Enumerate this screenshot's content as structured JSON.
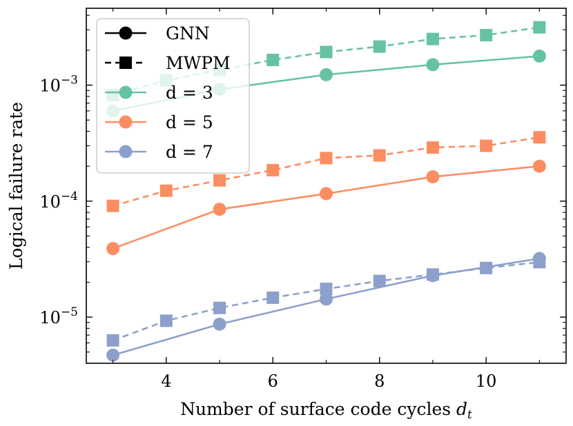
{
  "chart_data": {
    "type": "line",
    "xlabel": "Number of surface code cycles",
    "xlabel_sym": "d",
    "xlabel_sub": "t",
    "ylabel": "Logical failure rate",
    "xlim": [
      2.5,
      11.5
    ],
    "ylim": [
      4e-06,
      0.0046
    ],
    "yscale": "log",
    "x_ticks": [
      4,
      6,
      8,
      10
    ],
    "x_tick_labels": [
      "4",
      "6",
      "8",
      "10"
    ],
    "y_ticks": [
      1e-05,
      0.0001,
      0.001
    ],
    "y_tick_labels": [
      {
        "base": "10",
        "exp": "−5"
      },
      {
        "base": "10",
        "exp": "−4"
      },
      {
        "base": "10",
        "exp": "−3"
      }
    ],
    "legend_position": "top-left",
    "legend": [
      {
        "label": "GNN",
        "style": "solid",
        "marker": "circle",
        "color": "#000000"
      },
      {
        "label": "MWPM",
        "style": "dashed",
        "marker": "square",
        "color": "#000000"
      },
      {
        "label": "d = 3",
        "style": "solid",
        "marker": "circle",
        "color": "#66c2a5"
      },
      {
        "label": "d = 5",
        "style": "solid",
        "marker": "circle",
        "color": "#fc8d62"
      },
      {
        "label": "d = 7",
        "style": "solid",
        "marker": "circle",
        "color": "#8da0cb"
      }
    ],
    "series": [
      {
        "name": "d = 3",
        "method": "GNN",
        "color": "#66c2a5",
        "style": "solid",
        "marker": "circle",
        "x": [
          3,
          5,
          7,
          9,
          11
        ],
        "y": [
          0.0006,
          0.00092,
          0.00123,
          0.0015,
          0.00178
        ]
      },
      {
        "name": "d = 3",
        "method": "MWPM",
        "color": "#66c2a5",
        "style": "dashed",
        "marker": "square",
        "x": [
          3,
          4,
          5,
          6,
          7,
          8,
          9,
          10,
          11
        ],
        "y": [
          0.00082,
          0.0011,
          0.00135,
          0.00165,
          0.00193,
          0.00215,
          0.0025,
          0.0027,
          0.00315
        ]
      },
      {
        "name": "d = 5",
        "method": "GNN",
        "color": "#fc8d62",
        "style": "solid",
        "marker": "circle",
        "x": [
          3,
          5,
          7,
          9,
          11
        ],
        "y": [
          3.9e-05,
          8.5e-05,
          0.000116,
          0.000162,
          0.0002
        ]
      },
      {
        "name": "d = 5",
        "method": "MWPM",
        "color": "#fc8d62",
        "style": "dashed",
        "marker": "square",
        "x": [
          3,
          4,
          5,
          6,
          7,
          8,
          9,
          10,
          11
        ],
        "y": [
          9.1e-05,
          0.000123,
          0.000151,
          0.000185,
          0.000235,
          0.000248,
          0.00029,
          0.0003,
          0.000355
        ]
      },
      {
        "name": "d = 7",
        "method": "GNN",
        "color": "#8da0cb",
        "style": "solid",
        "marker": "circle",
        "x": [
          3,
          5,
          7,
          9,
          11
        ],
        "y": [
          4.7e-06,
          8.7e-06,
          1.43e-05,
          2.28e-05,
          3.2e-05
        ]
      },
      {
        "name": "d = 7",
        "method": "MWPM",
        "color": "#8da0cb",
        "style": "dashed",
        "marker": "square",
        "x": [
          3,
          4,
          5,
          6,
          7,
          8,
          9,
          10,
          11
        ],
        "y": [
          6.3e-06,
          9.3e-06,
          1.2e-05,
          1.47e-05,
          1.75e-05,
          2.05e-05,
          2.33e-05,
          2.65e-05,
          2.98e-05
        ]
      }
    ]
  }
}
